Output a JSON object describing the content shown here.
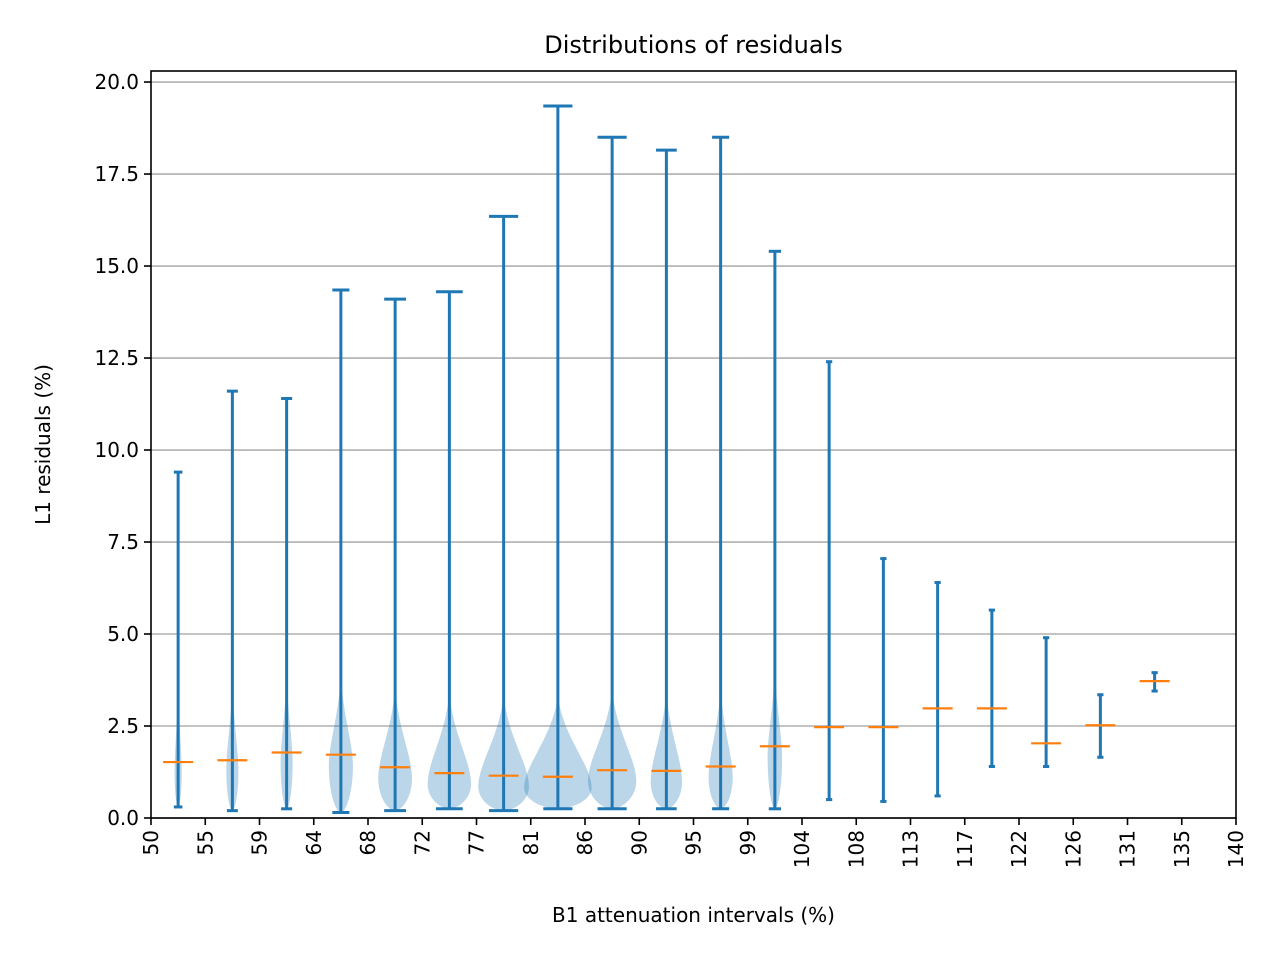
{
  "chart_data": {
    "type": "violin",
    "title": "Distributions of residuals",
    "xlabel": "B1 attenuation intervals (%)",
    "ylabel": "L1 residuals (%)",
    "xlim": [
      50,
      140
    ],
    "ylim": [
      0,
      20.3
    ],
    "x_ticks": [
      "50",
      "55",
      "59",
      "64",
      "68",
      "72",
      "77",
      "81",
      "86",
      "90",
      "95",
      "99",
      "104",
      "108",
      "113",
      "117",
      "122",
      "126",
      "131",
      "135",
      "140"
    ],
    "y_ticks": [
      "0.0",
      "2.5",
      "5.0",
      "7.5",
      "10.0",
      "12.5",
      "15.0",
      "17.5",
      "20.0"
    ],
    "y_tick_values": [
      0,
      2.5,
      5,
      7.5,
      10,
      12.5,
      15,
      17.5,
      20
    ],
    "grid": "horizontal",
    "colors": {
      "body": "#1f77b4",
      "median": "#ff7f0e",
      "grid": "#b0b0b0"
    },
    "series": [
      {
        "x": 52.25,
        "min": 0.3,
        "max": 9.4,
        "median": 1.52,
        "body_width": 0.3
      },
      {
        "x": 56.75,
        "min": 0.2,
        "max": 11.6,
        "median": 1.57,
        "body_width": 0.5
      },
      {
        "x": 61.25,
        "min": 0.25,
        "max": 11.4,
        "median": 1.78,
        "body_width": 0.5
      },
      {
        "x": 65.75,
        "min": 0.15,
        "max": 14.35,
        "median": 1.72,
        "body_width": 1.0
      },
      {
        "x": 70.25,
        "min": 0.2,
        "max": 14.1,
        "median": 1.38,
        "body_width": 1.4
      },
      {
        "x": 74.75,
        "min": 0.25,
        "max": 14.3,
        "median": 1.22,
        "body_width": 1.8
      },
      {
        "x": 79.25,
        "min": 0.2,
        "max": 16.35,
        "median": 1.15,
        "body_width": 2.1
      },
      {
        "x": 83.75,
        "min": 0.25,
        "max": 19.35,
        "median": 1.12,
        "body_width": 2.8
      },
      {
        "x": 88.25,
        "min": 0.25,
        "max": 18.5,
        "median": 1.3,
        "body_width": 2.0
      },
      {
        "x": 92.75,
        "min": 0.25,
        "max": 18.15,
        "median": 1.28,
        "body_width": 1.3
      },
      {
        "x": 97.25,
        "min": 0.25,
        "max": 18.5,
        "median": 1.4,
        "body_width": 1.0
      },
      {
        "x": 101.75,
        "min": 0.25,
        "max": 15.4,
        "median": 1.95,
        "body_width": 0.6
      },
      {
        "x": 106.25,
        "min": 0.5,
        "max": 12.4,
        "median": 2.47,
        "body_width": 0.1
      },
      {
        "x": 110.75,
        "min": 0.45,
        "max": 7.05,
        "median": 2.47,
        "body_width": 0.1
      },
      {
        "x": 115.25,
        "min": 0.6,
        "max": 6.4,
        "median": 2.98,
        "body_width": 0.1
      },
      {
        "x": 119.75,
        "min": 1.4,
        "max": 5.65,
        "median": 2.98,
        "body_width": 0.1
      },
      {
        "x": 124.25,
        "min": 1.4,
        "max": 4.9,
        "median": 2.03,
        "body_width": 0.1
      },
      {
        "x": 128.75,
        "min": 1.65,
        "max": 3.35,
        "median": 2.52,
        "body_width": 0.1
      },
      {
        "x": 133.25,
        "min": 3.45,
        "max": 3.95,
        "median": 3.72,
        "body_width": 0.1
      }
    ]
  }
}
